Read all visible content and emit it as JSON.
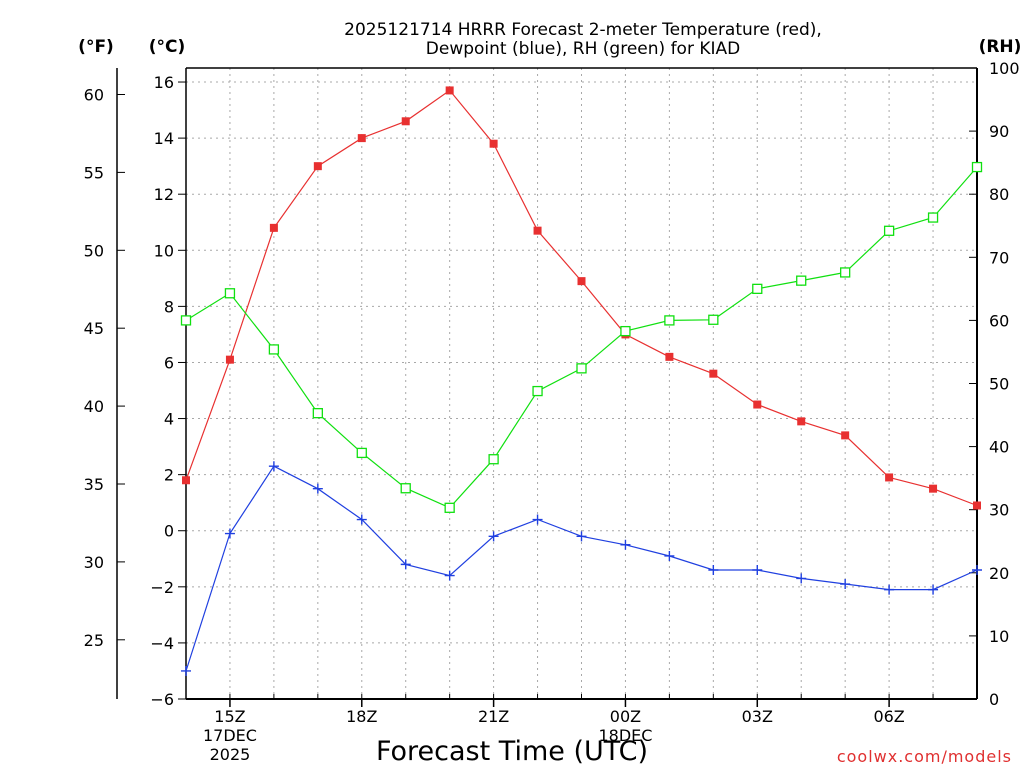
{
  "chart_data": {
    "type": "line",
    "title_line1": "2025121714 HRRR Forecast 2-meter Temperature (red),",
    "title_line2": "Dewpoint (blue), RH (green) for KIAD",
    "xlabel": "Forecast Time (UTC)",
    "credit": "coolwx.com/models",
    "unit_labels": {
      "fahrenheit": "(°F)",
      "celsius": "(°C)",
      "rh": "(RH)"
    },
    "x_hours": [
      14,
      15,
      16,
      17,
      18,
      19,
      20,
      21,
      22,
      23,
      24,
      25,
      26,
      27,
      28,
      29,
      30,
      31,
      32
    ],
    "xlim": [
      14,
      32
    ],
    "x_ticks": [
      {
        "hour": 15,
        "lines": [
          "15Z",
          "17DEC",
          "2025"
        ]
      },
      {
        "hour": 18,
        "lines": [
          "18Z"
        ]
      },
      {
        "hour": 21,
        "lines": [
          "21Z"
        ]
      },
      {
        "hour": 24,
        "lines": [
          "00Z",
          "18DEC"
        ]
      },
      {
        "hour": 27,
        "lines": [
          "03Z"
        ]
      },
      {
        "hour": 30,
        "lines": [
          "06Z"
        ]
      }
    ],
    "celsius_axis": {
      "ylim": [
        -6,
        16.5
      ],
      "ticks": [
        "-6",
        "-4",
        "-2",
        "0",
        "2",
        "4",
        "6",
        "8",
        "10",
        "12",
        "14",
        "16"
      ]
    },
    "fahrenheit_axis": {
      "ticks": [
        "25",
        "30",
        "35",
        "40",
        "45",
        "50",
        "55",
        "60"
      ]
    },
    "rh_axis": {
      "ylim": [
        0,
        100
      ],
      "ticks": [
        "0",
        "10",
        "20",
        "30",
        "40",
        "50",
        "60",
        "70",
        "80",
        "90",
        "100"
      ]
    },
    "series": [
      {
        "name": "Temperature",
        "axis": "celsius",
        "color": "#e83030",
        "marker": "filled-square",
        "values": [
          1.8,
          6.1,
          10.8,
          13.0,
          14.0,
          14.6,
          15.7,
          13.8,
          10.7,
          8.9,
          7.0,
          6.2,
          5.6,
          4.5,
          3.9,
          3.4,
          1.9,
          1.5,
          0.9
        ]
      },
      {
        "name": "Dewpoint",
        "axis": "celsius",
        "color": "#2040e0",
        "marker": "plus",
        "values": [
          -5.0,
          -0.1,
          2.3,
          1.5,
          0.4,
          -1.2,
          -1.6,
          -0.2,
          0.4,
          -0.2,
          -0.5,
          -0.9,
          -1.4,
          -1.4,
          -1.7,
          -1.9,
          -2.1,
          -2.1,
          -1.4
        ]
      },
      {
        "name": "RH",
        "axis": "rh",
        "color": "#10e010",
        "marker": "open-square",
        "values": [
          60.0,
          64.3,
          55.4,
          45.3,
          39.0,
          33.4,
          30.3,
          38.0,
          48.8,
          52.4,
          58.3,
          60.0,
          60.1,
          65.0,
          66.3,
          67.6,
          74.2,
          76.3,
          84.3
        ]
      }
    ]
  }
}
